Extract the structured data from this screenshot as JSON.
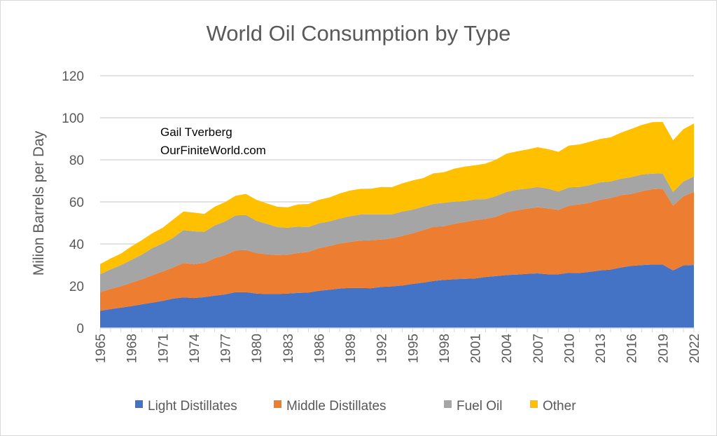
{
  "chart_data": {
    "type": "area",
    "stacked": true,
    "title": "World Oil Consumption by Type",
    "xlabel": "",
    "ylabel": "Milion Barrels per Day",
    "ylim": [
      0,
      120
    ],
    "yticks": [
      0,
      20,
      40,
      60,
      80,
      100,
      120
    ],
    "grid": true,
    "legend_position": "bottom",
    "annotation": [
      "Gail Tverberg",
      "OurFiniteWorld.com"
    ],
    "x": [
      1965,
      1966,
      1967,
      1968,
      1969,
      1970,
      1971,
      1972,
      1973,
      1974,
      1975,
      1976,
      1977,
      1978,
      1979,
      1980,
      1981,
      1982,
      1983,
      1984,
      1985,
      1986,
      1987,
      1988,
      1989,
      1990,
      1991,
      1992,
      1993,
      1994,
      1995,
      1996,
      1997,
      1998,
      1999,
      2000,
      2001,
      2002,
      2003,
      2004,
      2005,
      2006,
      2007,
      2008,
      2009,
      2010,
      2011,
      2012,
      2013,
      2014,
      2015,
      2016,
      2017,
      2018,
      2019,
      2020,
      2021,
      2022
    ],
    "xtick_labels": [
      "1965",
      "1968",
      "1971",
      "1974",
      "1977",
      "1980",
      "1983",
      "1986",
      "1989",
      "1992",
      "1995",
      "1998",
      "2001",
      "2004",
      "2007",
      "2010",
      "2013",
      "2016",
      "2019",
      "2022"
    ],
    "series": [
      {
        "name": "Light Distillates",
        "color": "#4472c4",
        "values": [
          8.2,
          9.0,
          9.7,
          10.4,
          11.3,
          12.1,
          12.9,
          14.0,
          14.6,
          14.3,
          14.7,
          15.4,
          16.0,
          17.1,
          17.1,
          16.4,
          16.2,
          16.2,
          16.4,
          16.7,
          16.9,
          17.7,
          18.2,
          18.8,
          19.1,
          19.1,
          18.9,
          19.6,
          19.8,
          20.2,
          21.0,
          21.6,
          22.4,
          22.9,
          23.2,
          23.4,
          23.6,
          24.3,
          24.7,
          25.2,
          25.4,
          25.8,
          26.0,
          25.6,
          25.6,
          26.3,
          26.2,
          26.7,
          27.4,
          27.8,
          28.8,
          29.6,
          29.9,
          30.2,
          30.2,
          27.4,
          29.8,
          30.0
        ]
      },
      {
        "name": "Middle Distillates",
        "color": "#ed7d31",
        "values": [
          8.9,
          9.6,
          10.2,
          11.2,
          11.9,
          13.0,
          14.0,
          14.8,
          16.3,
          16.1,
          16.3,
          17.8,
          18.7,
          19.8,
          20.0,
          19.3,
          18.9,
          18.5,
          18.5,
          19.0,
          19.3,
          20.3,
          20.8,
          21.4,
          21.9,
          22.5,
          22.9,
          22.5,
          22.9,
          23.6,
          24.1,
          25.0,
          25.8,
          25.5,
          26.4,
          27.0,
          27.7,
          27.6,
          28.2,
          29.7,
          30.6,
          31.0,
          31.4,
          31.3,
          30.6,
          31.9,
          32.6,
          32.9,
          33.6,
          34.0,
          34.4,
          34.2,
          35.2,
          35.8,
          36.1,
          30.8,
          32.9,
          34.7
        ]
      },
      {
        "name": "Fuel Oil",
        "color": "#a5a5a5",
        "values": [
          8.5,
          9.3,
          10.0,
          10.8,
          11.7,
          12.9,
          13.3,
          14.1,
          15.7,
          15.6,
          14.8,
          15.6,
          16.0,
          16.7,
          16.7,
          15.3,
          14.5,
          13.3,
          12.8,
          12.5,
          11.8,
          11.8,
          11.7,
          11.9,
          12.2,
          12.4,
          12.3,
          12.0,
          11.4,
          11.6,
          11.2,
          11.1,
          10.8,
          11.2,
          10.5,
          10.0,
          9.9,
          9.4,
          9.8,
          9.8,
          9.8,
          9.5,
          9.7,
          9.4,
          8.7,
          8.7,
          8.3,
          8.4,
          8.3,
          7.9,
          7.8,
          8.0,
          7.9,
          7.4,
          7.3,
          6.5,
          7.0,
          7.4
        ]
      },
      {
        "name": "Other",
        "color": "#ffc000",
        "values": [
          4.8,
          5.2,
          5.5,
          6.4,
          6.9,
          7.1,
          7.5,
          8.7,
          8.8,
          8.9,
          8.5,
          8.9,
          9.2,
          9.3,
          10.0,
          10.0,
          9.7,
          9.7,
          9.7,
          10.6,
          11.0,
          11.2,
          11.4,
          11.9,
          12.2,
          12.2,
          12.2,
          13.0,
          12.9,
          13.4,
          13.9,
          13.6,
          14.6,
          14.5,
          15.7,
          16.4,
          16.2,
          16.9,
          17.4,
          18.2,
          18.2,
          18.6,
          18.9,
          18.8,
          18.9,
          19.9,
          20.2,
          20.6,
          20.6,
          21.0,
          21.9,
          22.9,
          23.6,
          24.5,
          24.4,
          24.6,
          24.9,
          25.2
        ]
      }
    ]
  }
}
